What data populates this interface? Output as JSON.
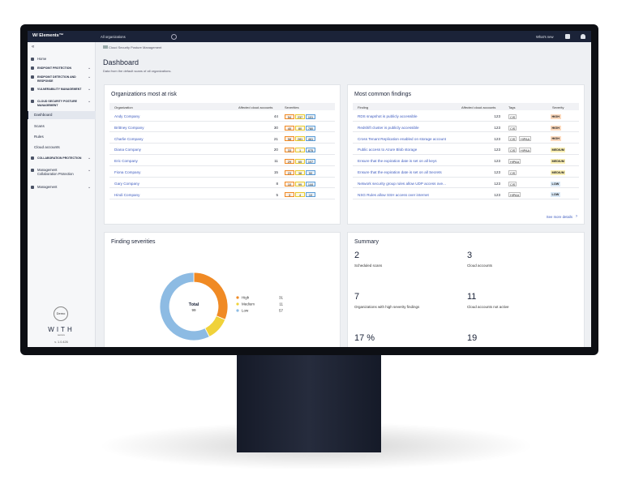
{
  "top_bar": {
    "logo": "W/ Elements™",
    "organization": "All organizations",
    "whats_new": "What's new"
  },
  "sidebar": {
    "items": [
      {
        "label": "Home"
      },
      {
        "label": "ENDPOINT PROTECTION"
      },
      {
        "label": "ENDPOINT DETECTION AND RESPONSE"
      },
      {
        "label": "VULNERABILITY MANAGEMENT"
      },
      {
        "label": "CLOUD SECURITY POSTURE MANAGEMENT"
      },
      {
        "label": "Dashboard"
      },
      {
        "label": "Scans"
      },
      {
        "label": "Rules"
      },
      {
        "label": "Cloud accounts"
      },
      {
        "label": "COLLABORATION PROTECTION"
      },
      {
        "label": "Management",
        "sublabel": "Collaboration Protection"
      },
      {
        "label": "Management"
      }
    ],
    "demo": "Demo",
    "brand": "WITH",
    "brand_sub": "secure",
    "version": "v. 1.0.426"
  },
  "header": {
    "breadcrumb": "Cloud Security Posture Management",
    "title": "Dashboard",
    "subtitle": "Data from the default scans of all organizations."
  },
  "organizations": {
    "title": "Organizations most at risk",
    "columns": [
      "Organization",
      "Affected cloud accounts",
      "Severities"
    ],
    "severity_colors": [
      "#f08a24",
      "#e8c92e",
      "#5b9bd5"
    ],
    "rows": [
      {
        "name": "Andy Company",
        "accounts": 44,
        "severities": [
          54,
          237,
          101
        ]
      },
      {
        "name": "Brittney Company",
        "accounts": 30,
        "severities": [
          40,
          80,
          780
        ]
      },
      {
        "name": "Charlie Company",
        "accounts": 21,
        "severities": [
          58,
          281,
          461
        ]
      },
      {
        "name": "Diana Company",
        "accounts": 20,
        "severities": [
          33,
          1,
          875
        ]
      },
      {
        "name": "Eric Company",
        "accounts": 11,
        "severities": [
          29,
          65,
          107
        ]
      },
      {
        "name": "Fiona Company",
        "accounts": 15,
        "severities": [
          23,
          38,
          50
        ]
      },
      {
        "name": "Gary Company",
        "accounts": 8,
        "severities": [
          10,
          99,
          144
        ]
      },
      {
        "name": "Hindi Company",
        "accounts": 5,
        "severities": [
          3,
          4,
          10
        ]
      }
    ]
  },
  "findings": {
    "title": "Most common findings",
    "columns": [
      "Finding",
      "Affected cloud accounts",
      "Tags",
      "Severity"
    ],
    "rows": [
      {
        "finding": "RDS snapshot is publicly accessible",
        "accounts": 123,
        "tags": [
          "CIS"
        ],
        "severity": "HIGH",
        "color": "#fcd9bd"
      },
      {
        "finding": "Redshift cluster is publicly accessible",
        "accounts": 123,
        "tags": [
          "CIS"
        ],
        "severity": "HIGH",
        "color": "#fcd9bd"
      },
      {
        "finding": "Cross Tenant Replication enabled on storage account",
        "accounts": 123,
        "tags": [
          "CIS",
          "HIPAA"
        ],
        "severity": "HIGH",
        "color": "#fcd9bd"
      },
      {
        "finding": "Public access to Azure Blob storage",
        "accounts": 123,
        "tags": [
          "CIS",
          "HIPAA"
        ],
        "severity": "MEDIUM",
        "color": "#fbf0b5"
      },
      {
        "finding": "Ensure that the expiration date is set on all keys",
        "accounts": 123,
        "tags": [
          "HIPAA"
        ],
        "severity": "MEDIUM",
        "color": "#fbf0b5"
      },
      {
        "finding": "Ensure that the expiration date is set on all Secrets",
        "accounts": 123,
        "tags": [
          "CIS"
        ],
        "severity": "MEDIUM",
        "color": "#fbf0b5"
      },
      {
        "finding": "Network security group rules allow UDP access ove...",
        "accounts": 123,
        "tags": [
          "CIS"
        ],
        "severity": "LOW",
        "color": "#d9e8f6"
      },
      {
        "finding": "NSG Rules allow SSH access over internet",
        "accounts": 123,
        "tags": [
          "HIPAA"
        ],
        "severity": "LOW",
        "color": "#d9e8f6"
      }
    ],
    "more": "See more details"
  },
  "finding_severities": {
    "title": "Finding severities",
    "total_label": "Total",
    "total": 99,
    "legend": [
      {
        "name": "High",
        "value": 31,
        "color": "#f08a24"
      },
      {
        "name": "Medium",
        "value": 11,
        "color": "#f0d23a"
      },
      {
        "name": "Low",
        "value": 57,
        "color": "#8dbbe3"
      }
    ]
  },
  "summary": {
    "title": "Summary",
    "items": [
      {
        "value": "2",
        "label": "Scheduled scans"
      },
      {
        "value": "3",
        "label": "Cloud accounts"
      },
      {
        "value": "7",
        "label": "Organizations with high severity findings"
      },
      {
        "value": "11",
        "label": "Cloud accounts not active"
      },
      {
        "value": "17 %"
      },
      {
        "value": "19"
      }
    ]
  }
}
